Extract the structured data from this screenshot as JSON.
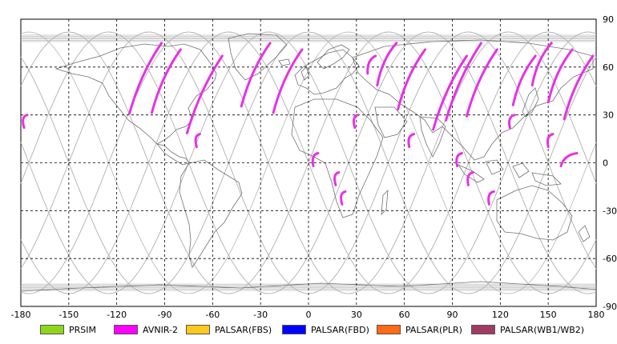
{
  "map": {
    "x_ticks": [
      "-180",
      "-150",
      "-120",
      "-90",
      "-60",
      "-30",
      "0",
      "30",
      "60",
      "90",
      "120",
      "150",
      "180"
    ],
    "y_ticks": [
      "90",
      "60",
      "30",
      "0",
      "-30",
      "-60",
      "-90"
    ],
    "grid": "dashed",
    "projection": "equirectangular"
  },
  "legend": [
    {
      "label": "PRSIM",
      "color": "#8fd61a"
    },
    {
      "label": "AVNIR-2",
      "color": "#ff00ff"
    },
    {
      "label": "PALSAR(FBS)",
      "color": "#ffc81e"
    },
    {
      "label": "PALSAR(FBD)",
      "color": "#0000ff"
    },
    {
      "label": "PALSAR(PLR)",
      "color": "#ff6a14"
    },
    {
      "label": "PALSAR(WB1/WB2)",
      "color": "#a03c64"
    }
  ],
  "colors": {
    "orbit": "#b4b4b4",
    "coast": "#707070",
    "grid": "#000000",
    "swath": "#e632e6"
  }
}
